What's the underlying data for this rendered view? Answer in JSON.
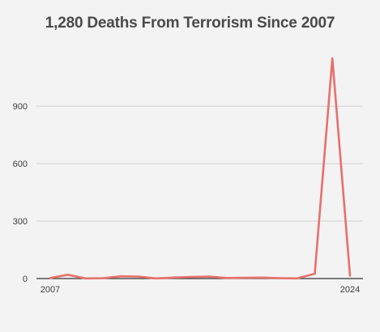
{
  "chart_data": {
    "type": "line",
    "title": "1,280 Deaths From Terrorism Since 2007",
    "xlabel": "",
    "ylabel": "",
    "x": [
      2007,
      2008,
      2009,
      2010,
      2011,
      2012,
      2013,
      2014,
      2015,
      2016,
      2017,
      2018,
      2019,
      2020,
      2021,
      2022,
      2023,
      2024
    ],
    "series": [
      {
        "values": [
          3,
          20,
          1,
          2,
          12,
          10,
          1,
          5,
          8,
          10,
          3,
          4,
          5,
          2,
          1,
          25,
          1150,
          15
        ],
        "color": "#e8706b"
      }
    ],
    "ylim": [
      0,
      1150
    ],
    "yticks": [
      0,
      300,
      600,
      900
    ],
    "xtick_labels": [
      "2007",
      "2024"
    ],
    "grid": "horizontal",
    "legend": "none"
  }
}
